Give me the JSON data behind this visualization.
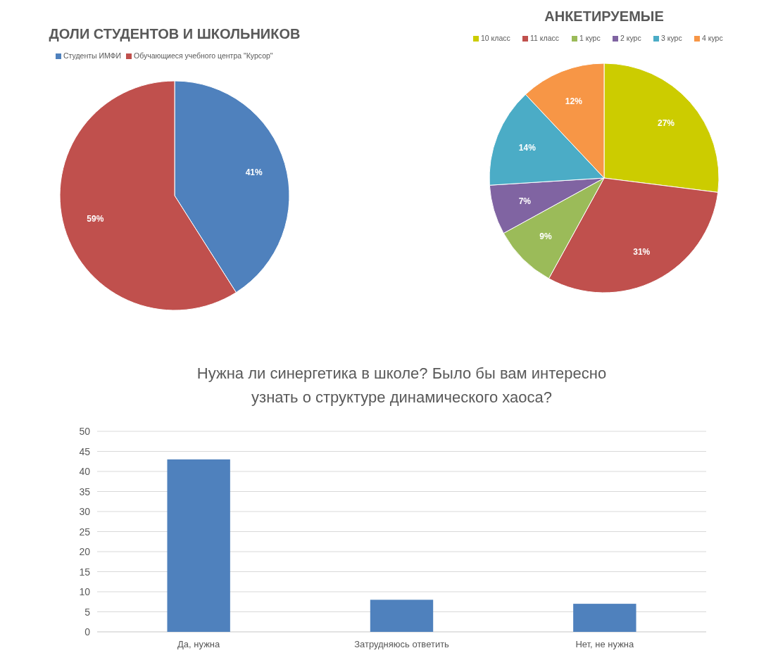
{
  "chart_data": [
    {
      "type": "pie",
      "title": "ДОЛИ СТУДЕНТОВ И ШКОЛЬНИКОВ",
      "categories": [
        "Студенты ИМФИ",
        "Обучающиеся учебного центра \"Курсор\""
      ],
      "values": [
        41,
        59
      ],
      "colors": [
        "#4f81bd",
        "#c0504d"
      ],
      "value_labels": [
        "41%",
        "59%"
      ],
      "legend": "top"
    },
    {
      "type": "pie",
      "title": "АНКЕТИРУЕМЫЕ",
      "categories": [
        "10 класс",
        "11 класс",
        "1 курс",
        "2 курс",
        "3 курс",
        "4 курс"
      ],
      "values": [
        27,
        31,
        9,
        7,
        14,
        12
      ],
      "colors": [
        "#cccc00",
        "#c0504d",
        "#9bbb59",
        "#8064a2",
        "#4bacc6",
        "#f79646"
      ],
      "value_labels": [
        "27%",
        "31%",
        "9%",
        "7%",
        "14%",
        "12%"
      ],
      "legend": "top"
    },
    {
      "type": "bar",
      "title": "Нужна ли синергетика в школе? Было бы вам интересно узнать о структуре динамического хаоса?",
      "categories": [
        "Да, нужна",
        "Затрудняюсь ответить",
        "Нет, не нужна"
      ],
      "values": [
        43,
        8,
        7
      ],
      "color": "#4f81bd",
      "ylim": [
        0,
        50
      ],
      "yticks": [
        0,
        5,
        10,
        15,
        20,
        25,
        30,
        35,
        40,
        45,
        50
      ],
      "grid": "y"
    }
  ]
}
